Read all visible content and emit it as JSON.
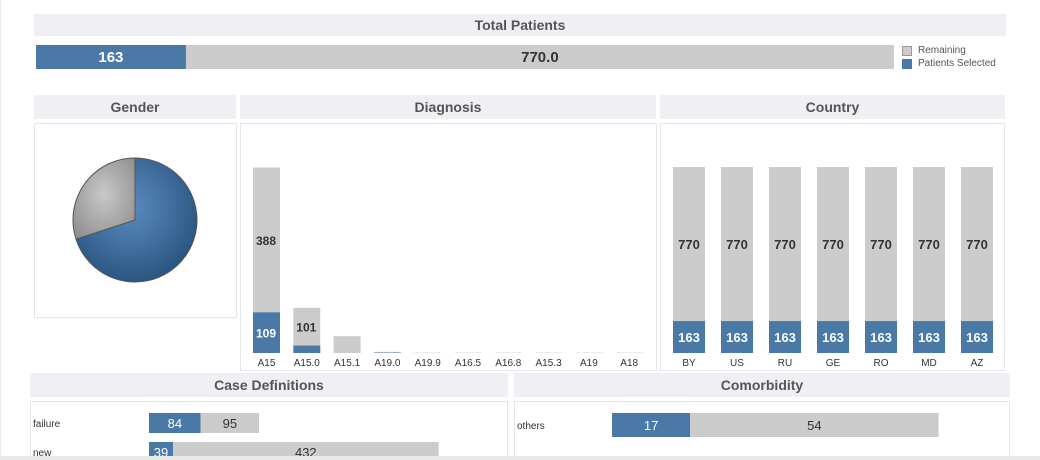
{
  "colors": {
    "selected": "#4a79a8",
    "remaining": "#cccccc",
    "header_bg": "#efeff4"
  },
  "total": {
    "title": "Total Patients",
    "selected_value": 163,
    "selected_label": "163",
    "remaining_label": "770.0",
    "legend": [
      {
        "label": "Remaining",
        "color": "#cccccc"
      },
      {
        "label": "Patients Selected",
        "color": "#4a79a8"
      }
    ]
  },
  "gender": {
    "title": "Gender"
  },
  "diagnosis": {
    "title": "Diagnosis"
  },
  "country": {
    "title": "Country"
  },
  "case_definitions": {
    "title": "Case Definitions"
  },
  "comorbidity": {
    "title": "Comorbidity"
  },
  "chart_data": [
    {
      "type": "bar",
      "title": "Total Patients",
      "categories": [
        "Total"
      ],
      "series": [
        {
          "name": "Patients Selected",
          "values": [
            163
          ]
        },
        {
          "name": "Remaining",
          "values": [
            770
          ]
        }
      ]
    },
    {
      "type": "pie",
      "title": "Gender",
      "slices": [
        {
          "value": 0.7,
          "color": "#3a6e9e"
        },
        {
          "value": 0.3,
          "color": "#a9a9a9"
        }
      ]
    },
    {
      "type": "bar",
      "title": "Diagnosis",
      "categories": [
        "A15",
        "A15.0",
        "A15.1",
        "A19.0",
        "A19.9",
        "A16.5",
        "A16.8",
        "A15.3",
        "A19",
        "A18"
      ],
      "series": [
        {
          "name": "Patients Selected",
          "values": [
            109,
            20,
            0,
            1,
            0,
            0,
            0,
            0,
            0,
            0
          ]
        },
        {
          "name": "Remaining",
          "values": [
            388,
            101,
            45,
            2,
            1,
            1,
            1,
            1,
            1,
            1
          ]
        }
      ],
      "labels": [
        {
          "index": 0,
          "series": "Patients Selected",
          "text": "109"
        },
        {
          "index": 0,
          "series": "Remaining",
          "text": "388"
        },
        {
          "index": 1,
          "series": "Remaining",
          "text": "101"
        }
      ],
      "ylim": [
        0,
        520
      ]
    },
    {
      "type": "bar",
      "title": "Country",
      "categories": [
        "BY",
        "US",
        "RU",
        "GE",
        "RO",
        "MD",
        "AZ"
      ],
      "series": [
        {
          "name": "Patients Selected",
          "values": [
            163,
            163,
            163,
            163,
            163,
            163,
            163
          ]
        },
        {
          "name": "Remaining",
          "values": [
            770,
            770,
            770,
            770,
            770,
            770,
            770
          ]
        }
      ]
    },
    {
      "type": "bar",
      "title": "Case Definitions",
      "orientation": "horizontal",
      "categories": [
        "failure",
        "new"
      ],
      "series": [
        {
          "name": "Patients Selected",
          "values": [
            84,
            39
          ]
        },
        {
          "name": "Remaining",
          "values": [
            95,
            432
          ]
        }
      ]
    },
    {
      "type": "bar",
      "title": "Comorbidity",
      "orientation": "horizontal",
      "categories": [
        "others"
      ],
      "series": [
        {
          "name": "Patients Selected",
          "values": [
            17
          ]
        },
        {
          "name": "Remaining",
          "values": [
            54
          ]
        }
      ]
    }
  ]
}
